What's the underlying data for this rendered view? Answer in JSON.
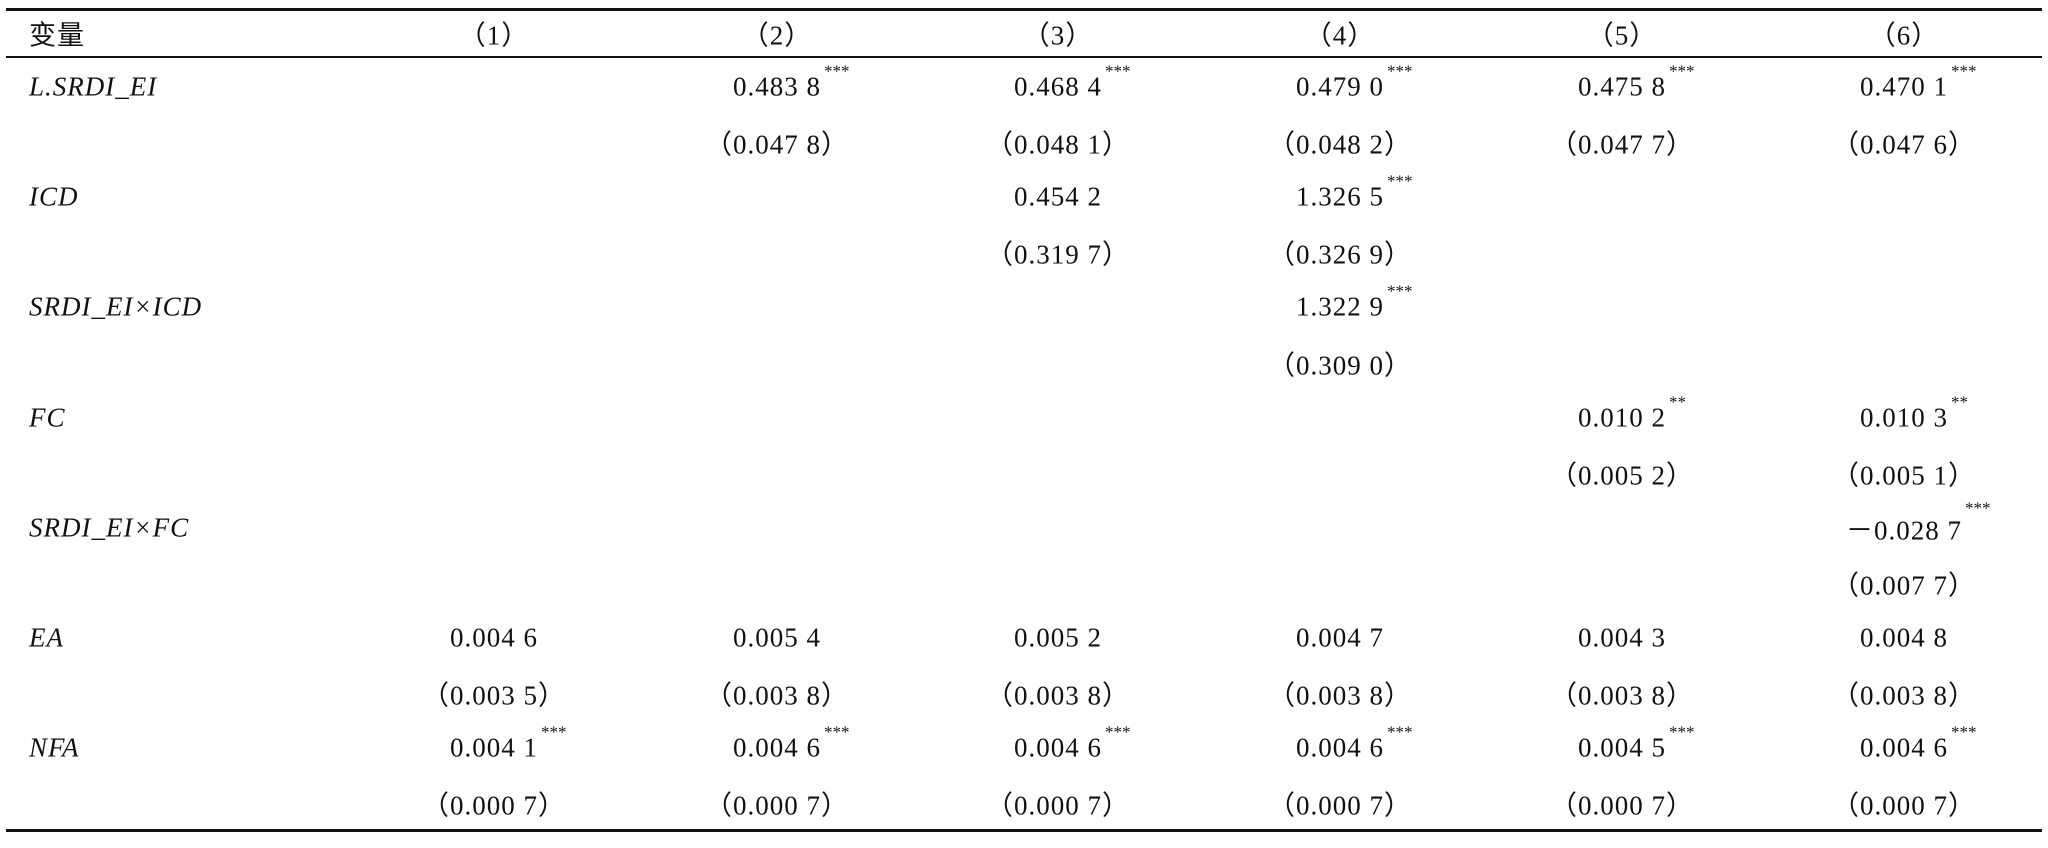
{
  "table": {
    "header": [
      "变量",
      "（1）",
      "（2）",
      "（3）",
      "（4）",
      "（5）",
      "（6）"
    ],
    "rows": [
      {
        "label": "L.SRDI_EI",
        "cells": [
          null,
          {
            "text": "0.483 8",
            "stars": "***"
          },
          {
            "text": "0.468 4",
            "stars": "***"
          },
          {
            "text": "0.479 0",
            "stars": "***"
          },
          {
            "text": "0.475 8",
            "stars": "***"
          },
          {
            "text": "0.470 1",
            "stars": "***"
          }
        ]
      },
      {
        "cells": [
          null,
          {
            "text": "（0.047 8）"
          },
          {
            "text": "（0.048 1）"
          },
          {
            "text": "（0.048 2）"
          },
          {
            "text": "（0.047 7）"
          },
          {
            "text": "（0.047 6）"
          }
        ]
      },
      {
        "label": "ICD",
        "cells": [
          null,
          null,
          {
            "text": "0.454 2"
          },
          {
            "text": "1.326 5",
            "stars": "***"
          },
          null,
          null
        ]
      },
      {
        "cells": [
          null,
          null,
          {
            "text": "（0.319 7）"
          },
          {
            "text": "（0.326 9）"
          },
          null,
          null
        ]
      },
      {
        "label": "SRDI_EI×ICD",
        "cells": [
          null,
          null,
          null,
          {
            "text": "1.322 9",
            "stars": "***"
          },
          null,
          null
        ]
      },
      {
        "cells": [
          null,
          null,
          null,
          {
            "text": "（0.309 0）"
          },
          null,
          null
        ]
      },
      {
        "label": "FC",
        "cells": [
          null,
          null,
          null,
          null,
          {
            "text": "0.010 2",
            "stars": "**"
          },
          {
            "text": "0.010 3",
            "stars": "**"
          }
        ]
      },
      {
        "cells": [
          null,
          null,
          null,
          null,
          {
            "text": "（0.005 2）"
          },
          {
            "text": "（0.005 1）"
          }
        ]
      },
      {
        "label": "SRDI_EI×FC",
        "cells": [
          null,
          null,
          null,
          null,
          null,
          {
            "text": "－0.028 7",
            "stars": "***"
          }
        ]
      },
      {
        "cells": [
          null,
          null,
          null,
          null,
          null,
          {
            "text": "（0.007 7）"
          }
        ]
      },
      {
        "label": "EA",
        "cells": [
          {
            "text": "0.004 6"
          },
          {
            "text": "0.005 4"
          },
          {
            "text": "0.005 2"
          },
          {
            "text": "0.004 7"
          },
          {
            "text": "0.004 3"
          },
          {
            "text": "0.004 8"
          }
        ]
      },
      {
        "cells": [
          {
            "text": "（0.003 5）"
          },
          {
            "text": "（0.003 8）"
          },
          {
            "text": "（0.003 8）"
          },
          {
            "text": "（0.003 8）"
          },
          {
            "text": "（0.003 8）"
          },
          {
            "text": "（0.003 8）"
          }
        ]
      },
      {
        "label": "NFA",
        "cells": [
          {
            "text": "0.004 1",
            "stars": "***"
          },
          {
            "text": "0.004 6",
            "stars": "***"
          },
          {
            "text": "0.004 6",
            "stars": "***"
          },
          {
            "text": "0.004 6",
            "stars": "***"
          },
          {
            "text": "0.004 5",
            "stars": "***"
          },
          {
            "text": "0.004 6",
            "stars": "***"
          }
        ]
      },
      {
        "cells": [
          {
            "text": "（0.000 7）"
          },
          {
            "text": "（0.000 7）"
          },
          {
            "text": "（0.000 7）"
          },
          {
            "text": "（0.000 7）"
          },
          {
            "text": "（0.000 7）"
          },
          {
            "text": "（0.000 7）"
          }
        ]
      }
    ]
  }
}
